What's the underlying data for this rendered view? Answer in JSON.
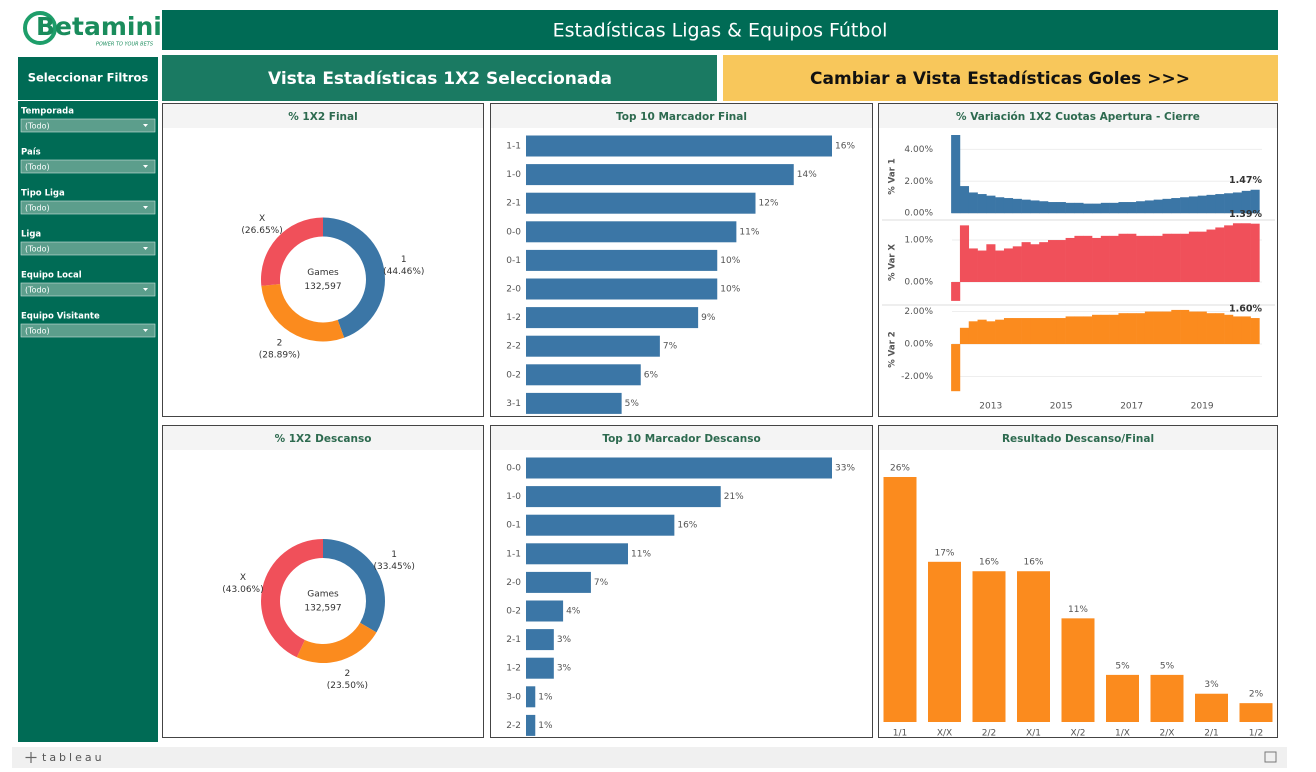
{
  "header": {
    "logo": "Betaminic",
    "tagline": "POWER TO YOUR BETS",
    "title": "Estadísticas Ligas & Equipos Fútbol"
  },
  "nav": {
    "filters_title": "Seleccionar Filtros",
    "current_view": "Vista Estadísticas 1X2 Seleccionada",
    "switch_view": "Cambiar a Vista Estadísticas Goles >>>"
  },
  "filters": [
    {
      "label": "Temporada",
      "value": "(Todo)"
    },
    {
      "label": "País",
      "value": "(Todo)"
    },
    {
      "label": "Tipo Liga",
      "value": "(Todo)"
    },
    {
      "label": "Liga",
      "value": "(Todo)"
    },
    {
      "label": "Equipo Local",
      "value": "(Todo)"
    },
    {
      "label": "Equipo Visitante",
      "value": "(Todo)"
    }
  ],
  "footer": {
    "brand": "tableau"
  },
  "chart_data": [
    {
      "type": "donut",
      "title": "% 1X2 Final",
      "center_label": "Games",
      "center_value": "132,597",
      "categories": [
        "1",
        "2",
        "X"
      ],
      "values": [
        44.46,
        28.89,
        26.65
      ],
      "value_labels": [
        "(44.46%)",
        "(28.89%)",
        "(26.65%)"
      ],
      "colors": [
        "#3b76a6",
        "#fb8b1e",
        "#f0505a"
      ]
    },
    {
      "type": "hbar",
      "title": "Top 10 Marcador Final",
      "color": "#3b76a6",
      "categories": [
        "1-1",
        "1-0",
        "2-1",
        "0-0",
        "0-1",
        "2-0",
        "1-2",
        "2-2",
        "0-2",
        "3-1"
      ],
      "values": [
        16,
        14,
        12,
        11,
        10,
        10,
        9,
        7,
        6,
        5
      ],
      "value_labels": [
        "16%",
        "14%",
        "12%",
        "11%",
        "10%",
        "10%",
        "9%",
        "7%",
        "6%",
        "5%"
      ]
    },
    {
      "type": "area_panels",
      "title": "% Variación 1X2 Cuotas Apertura - Cierre",
      "x": [
        2012,
        2012.25,
        2012.5,
        2012.75,
        2013,
        2013.25,
        2013.5,
        2013.75,
        2014,
        2014.25,
        2014.5,
        2014.75,
        2015,
        2015.25,
        2015.5,
        2015.75,
        2016,
        2016.25,
        2016.5,
        2016.75,
        2017,
        2017.25,
        2017.5,
        2017.75,
        2018,
        2018.25,
        2018.5,
        2018.75,
        2019,
        2019.25,
        2019.5,
        2019.75,
        2020,
        2020.25,
        2020.5
      ],
      "xlim": [
        2011.9,
        2020.7
      ],
      "xticks": [
        2013,
        2015,
        2017,
        2019
      ],
      "series": [
        {
          "name": "% Var 1",
          "color": "#3b76a6",
          "ylim": [
            -0.3,
            4.9
          ],
          "yticks": [
            {
              "value": 0,
              "label": "0.00%"
            },
            {
              "value": 2,
              "label": "2.00%"
            },
            {
              "value": 4,
              "label": "4.00%"
            }
          ],
          "values": [
            4.9,
            1.7,
            1.3,
            1.2,
            1.1,
            1.0,
            0.95,
            0.9,
            0.85,
            0.8,
            0.75,
            0.7,
            0.7,
            0.65,
            0.65,
            0.6,
            0.6,
            0.65,
            0.65,
            0.7,
            0.7,
            0.75,
            0.8,
            0.85,
            0.9,
            0.95,
            1.0,
            1.05,
            1.1,
            1.15,
            1.2,
            1.25,
            1.3,
            1.4,
            1.47
          ],
          "last_label": "1.47%"
        },
        {
          "name": "% Var X",
          "color": "#f0505a",
          "ylim": [
            -0.5,
            1.43
          ],
          "yticks": [
            {
              "value": 0,
              "label": "0.00%"
            },
            {
              "value": 1,
              "label": "1.00%"
            }
          ],
          "values": [
            -0.45,
            1.35,
            0.8,
            0.75,
            0.9,
            0.75,
            0.8,
            0.85,
            0.95,
            0.9,
            0.95,
            1.0,
            1.0,
            1.05,
            1.1,
            1.1,
            1.05,
            1.1,
            1.1,
            1.15,
            1.15,
            1.1,
            1.1,
            1.1,
            1.15,
            1.15,
            1.15,
            1.2,
            1.2,
            1.25,
            1.3,
            1.35,
            1.4,
            1.4,
            1.39
          ],
          "last_label": "1.39%"
        },
        {
          "name": "% Var 2",
          "color": "#fb8b1e",
          "ylim": [
            -2.95,
            2.28
          ],
          "yticks": [
            {
              "value": -2,
              "label": "-2.00%"
            },
            {
              "value": 0,
              "label": "0.00%"
            },
            {
              "value": 2,
              "label": "2.00%"
            }
          ],
          "values": [
            -2.9,
            1.0,
            1.4,
            1.5,
            1.4,
            1.5,
            1.6,
            1.6,
            1.6,
            1.6,
            1.6,
            1.6,
            1.6,
            1.7,
            1.7,
            1.7,
            1.8,
            1.8,
            1.8,
            1.9,
            1.9,
            1.9,
            2.0,
            2.0,
            2.0,
            2.1,
            2.1,
            2.0,
            2.0,
            1.9,
            1.9,
            1.8,
            1.7,
            1.7,
            1.6
          ],
          "last_label": "1.60%"
        }
      ]
    },
    {
      "type": "donut",
      "title": "% 1X2 Descanso",
      "center_label": "Games",
      "center_value": "132,597",
      "categories": [
        "1",
        "2",
        "X"
      ],
      "values": [
        33.45,
        23.5,
        43.06
      ],
      "value_labels": [
        "(33.45%)",
        "(23.50%)",
        "(43.06%)"
      ],
      "colors": [
        "#3b76a6",
        "#fb8b1e",
        "#f0505a"
      ]
    },
    {
      "type": "hbar",
      "title": "Top 10 Marcador Descanso",
      "color": "#3b76a6",
      "categories": [
        "0-0",
        "1-0",
        "0-1",
        "1-1",
        "2-0",
        "0-2",
        "2-1",
        "1-2",
        "3-0",
        "2-2"
      ],
      "values": [
        33,
        21,
        16,
        11,
        7,
        4,
        3,
        3,
        1,
        1
      ],
      "value_labels": [
        "33%",
        "21%",
        "16%",
        "11%",
        "7%",
        "4%",
        "3%",
        "3%",
        "1%",
        "1%"
      ]
    },
    {
      "type": "vbar",
      "title": "Resultado Descanso/Final",
      "color": "#fb8b1e",
      "categories": [
        "1/1",
        "X/X",
        "2/2",
        "X/1",
        "X/2",
        "1/X",
        "2/X",
        "2/1",
        "1/2"
      ],
      "values": [
        26,
        17,
        16,
        16,
        11,
        5,
        5,
        3,
        2
      ],
      "value_labels": [
        "26%",
        "17%",
        "16%",
        "16%",
        "11%",
        "5%",
        "5%",
        "3%",
        "2%"
      ]
    }
  ]
}
